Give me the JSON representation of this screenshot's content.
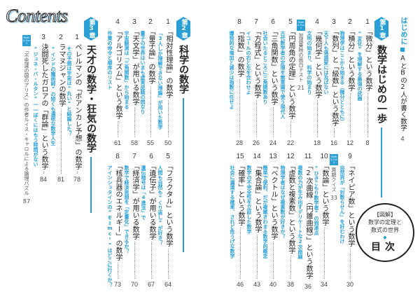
{
  "logo": "Contents",
  "intro": {
    "label": "はじめに",
    "title": "AとBの2人が書く数学",
    "page": "4"
  },
  "accent_color": "#2a9fd6",
  "chapters": [
    {
      "badge": "第1章",
      "title": "数学はじめの一歩",
      "items": [
        {
          "no": "1",
          "title": "「微分」という数学",
          "subtitle": "“変化”を理解する最強の武器",
          "page": "8"
        },
        {
          "no": "2",
          "title": "「積分」という数学",
          "subtitle": "物理学はここから始まる（微分とともに）",
          "page": "12"
        },
        {
          "no": "3",
          "title": "「数列」と「級数」という数学",
          "subtitle": "天下人も落語家には及ばない",
          "page": "16"
        },
        {
          "no": "4",
          "title": "「幾何学」という数学",
          "subtitle": "文明の始まり、科学の始まり",
          "page": "18"
        },
        {
          "no": "5",
          "title": "「円周角の定理」という数学",
          "subtitle": "古代数学者の定理を無意識で使う現代人",
          "page": "22"
        },
        {
          "no": "6",
          "title": "「三角関数」という数学",
          "subtitle": "社会いたるところに三角関数あり",
          "page": "24"
        },
        {
          "no": "7",
          "title": "「方程式」という数学",
          "subtitle": "イコールの右と左を合わせよ",
          "page": "26"
        },
        {
          "no": "8",
          "title": "「指数」の数学",
          "subtitle": "爆発的な増加と減少は指数に任せよ",
          "page": "28"
        },
        {
          "no": "9",
          "title": "「ネイピア数」という数学",
          "subtitle": "自然界が「対数らせん」を好むわけ",
          "page": "30"
        },
        {
          "no": "10",
          "title": "「数論」という数学",
          "subtitle": "“ひきこもり数学者”の到達点",
          "page": "34"
        },
        {
          "no": "11",
          "title": "「2次曲線（円錐曲線）」という数学",
          "subtitle": "複数の力が生み出すデリケートな2次曲線",
          "page": "36"
        },
        {
          "no": "12",
          "title": "「虚数と複素数」という数学",
          "subtitle": "物理学者はなぜ複素数が好きか？",
          "page": "38"
        },
        {
          "no": "13",
          "title": "「ベクトル」という数学",
          "subtitle": "簡単で便利、だが複雑きわまる数学的概念",
          "page": "40"
        },
        {
          "no": "14",
          "title": "「集合論」という数学",
          "subtitle": "数学の不完全性を立証した数学",
          "page": "43"
        },
        {
          "no": "15",
          "title": "「確率」という数学",
          "subtitle": "社会に漏満する確率、されど危うげな数学",
          "page": "46"
        }
      ],
      "columns": [
        {
          "badge": "Math & Fun 1",
          "title": "加減乗除の面白テスト",
          "page": "21"
        },
        {
          "badge": "Math & Fun 2",
          "title": "算額クイズ",
          "page": "33"
        }
      ]
    },
    {
      "badge": "第2章",
      "title": "科学の数学",
      "items": [
        {
          "no": "1",
          "title": "「相対性理論」の数学",
          "subtitle": "「3人しか理解できない理論」が用いた数学",
          "page": "50"
        },
        {
          "no": "2",
          "title": "「量子論」の数学",
          "subtitle": "量子の世界はいまも虚実皮膜の間なり",
          "page": "55"
        },
        {
          "no": "3",
          "title": "「天文学」が用いる数学",
          "subtitle": "宇宙観測は「三角関数」から始まる",
          "page": "58"
        },
        {
          "no": "4",
          "title": "「アルゴリズム」という数学",
          "subtitle": "作業の命令と順序のリスト",
          "page": "61"
        },
        {
          "no": "5",
          "title": "「フラクタル」という数学",
          "subtitle": "人間も自然も“くり返し”が好き？",
          "page": "64"
        },
        {
          "no": "6",
          "title": "「遺伝子」が用いる数学",
          "subtitle": "遺伝暗号は「4進法」で",
          "page": "67"
        },
        {
          "no": "7",
          "title": "「経済学」が用いる数学",
          "subtitle": "数学で経済思想を「定量化」できるか？",
          "page": "70"
        },
        {
          "no": "8",
          "title": "「核兵器のエネルギー」の数学",
          "subtitle": "アインシュタインの“E＝mc²”はどこに行くか？",
          "page": "73"
        }
      ],
      "columns": []
    },
    {
      "badge": "第3章",
      "title": "天才の数学・狂気の数学",
      "items": [
        {
          "no": "1",
          "title": "ペレルマンの「ポアンカレ予想」の数学",
          "subtitle": "その予想は宇宙は“丸い”と結論した？",
          "page": "78"
        },
        {
          "no": "2",
          "title": "ラマヌジャンの数学",
          "subtitle": "“インドの魔術師”の短くも濃密な数学人生",
          "page": "81"
        },
        {
          "no": "3",
          "title": "決闘死したガロアの「群論」という数学",
          "subtitle": "“ジュネ・バ・ルタン”――ぼくにはもう時間がない",
          "page": "84"
        }
      ],
      "columns": [
        {
          "badge": "Math & Fun 3",
          "title": "「不思議の国のアリス」の作者ルイス・キャロルによる論理パズル",
          "page": "87"
        }
      ]
    }
  ],
  "circle": {
    "label": "【図解】",
    "line1": "数学の定理と",
    "line2": "数式の世界",
    "diamond": "◆",
    "title": "目次"
  }
}
